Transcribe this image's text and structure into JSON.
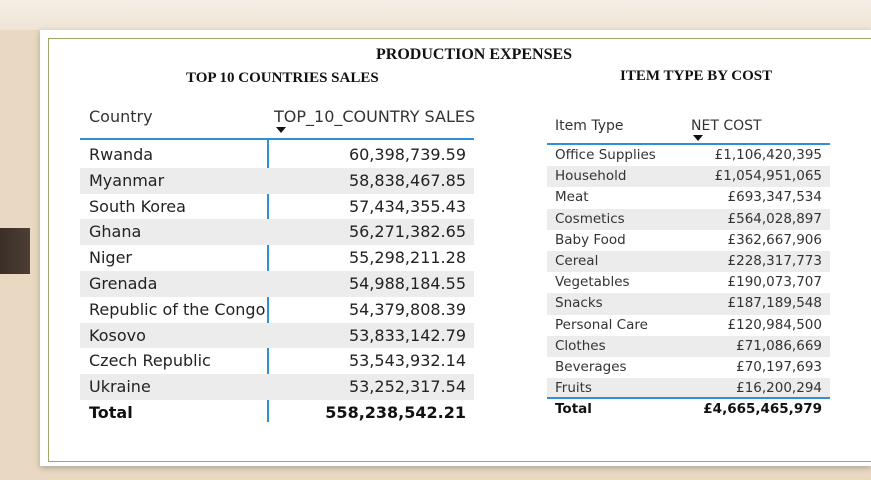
{
  "header": {
    "title": "PRODUCTION EXPENSES",
    "left_subtitle": "TOP 10 COUNTRIES SALES",
    "right_subtitle": "ITEM TYPE BY COST"
  },
  "countries_table": {
    "col_country": "Country",
    "col_sales": "TOP_10_COUNTRY SALES",
    "sort_icon": "sort-desc-icon",
    "rows": [
      {
        "name": "Rwanda",
        "value": "60,398,739.59"
      },
      {
        "name": "Myanmar",
        "value": "58,838,467.85"
      },
      {
        "name": "South Korea",
        "value": "57,434,355.43"
      },
      {
        "name": "Ghana",
        "value": "56,271,382.65"
      },
      {
        "name": "Niger",
        "value": "55,298,211.28"
      },
      {
        "name": "Grenada",
        "value": "54,988,184.55"
      },
      {
        "name": "Republic of the Congo",
        "value": "54,379,808.39"
      },
      {
        "name": "Kosovo",
        "value": "53,833,142.79"
      },
      {
        "name": "Czech Republic",
        "value": "53,543,932.14"
      },
      {
        "name": "Ukraine",
        "value": "53,252,317.54"
      }
    ],
    "total_label": "Total",
    "total_value": "558,238,542.21"
  },
  "items_table": {
    "col_item": "Item Type",
    "col_cost": "NET COST",
    "sort_icon": "sort-desc-icon",
    "rows": [
      {
        "name": "Office Supplies",
        "value": "£1,106,420,395"
      },
      {
        "name": "Household",
        "value": "£1,054,951,065"
      },
      {
        "name": "Meat",
        "value": "£693,347,534"
      },
      {
        "name": "Cosmetics",
        "value": "£564,028,897"
      },
      {
        "name": "Baby Food",
        "value": "£362,667,906"
      },
      {
        "name": "Cereal",
        "value": "£228,317,773"
      },
      {
        "name": "Vegetables",
        "value": "£190,073,707"
      },
      {
        "name": "Snacks",
        "value": "£187,189,548"
      },
      {
        "name": "Personal Care",
        "value": "£120,984,500"
      },
      {
        "name": "Clothes",
        "value": "£71,086,669"
      },
      {
        "name": "Beverages",
        "value": "£70,197,693"
      },
      {
        "name": "Fruits",
        "value": "£16,200,294"
      }
    ],
    "total_label": "Total",
    "total_value": "£4,665,465,979"
  },
  "colors": {
    "accent": "#2f8fd8",
    "alt_row": "#ececec",
    "frame": "#9aa86a"
  }
}
